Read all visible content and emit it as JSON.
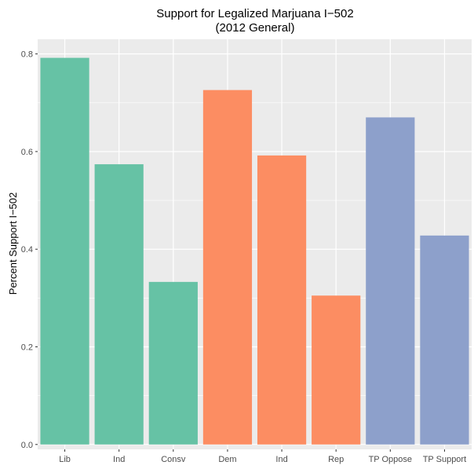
{
  "chart_data": {
    "type": "bar",
    "title": "Support for Legalized Marjuana I−502",
    "subtitle": "(2012 General)",
    "xlabel": "",
    "ylabel": "Percent Support I−502",
    "ylim": [
      -0.01,
      0.83
    ],
    "yticks": [
      0.0,
      0.2,
      0.4,
      0.6,
      0.8
    ],
    "ytick_labels": [
      "0.0",
      "0.2",
      "0.4",
      "0.6",
      "0.8"
    ],
    "grid": true,
    "legend": "none",
    "categories": [
      "Lib",
      "Ind",
      "Consv",
      "Dem",
      "Ind",
      "Rep",
      "TP Oppose",
      "TP Support"
    ],
    "values": [
      0.792,
      0.574,
      0.333,
      0.726,
      0.592,
      0.305,
      0.67,
      0.428
    ],
    "bar_colors": [
      "#66c2a5",
      "#66c2a5",
      "#66c2a5",
      "#fc8d62",
      "#fc8d62",
      "#fc8d62",
      "#8da0cb",
      "#8da0cb"
    ],
    "panel_background": "#ebebeb",
    "grid_color": "#ffffff"
  }
}
